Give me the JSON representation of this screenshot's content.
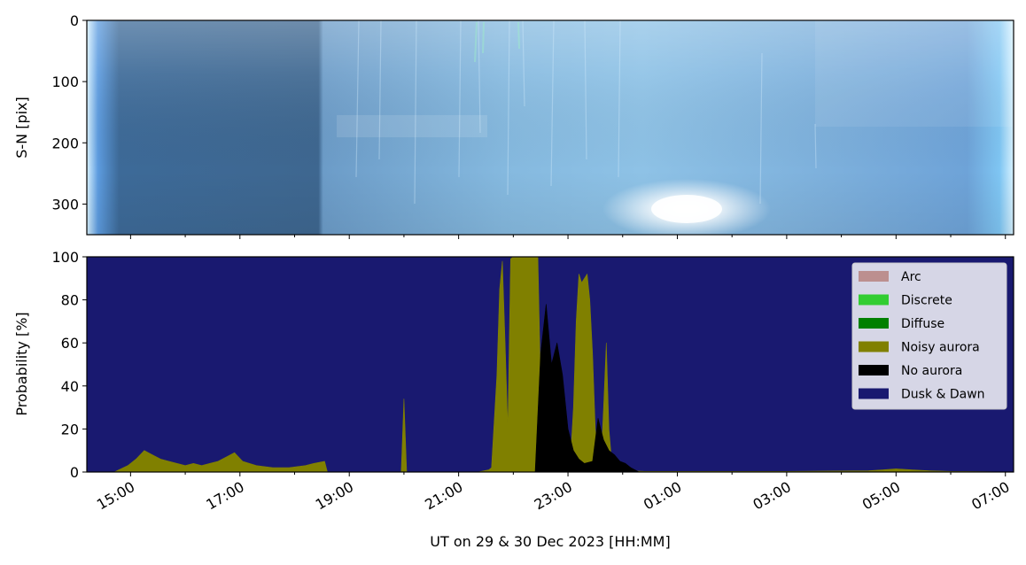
{
  "chart_data": [
    {
      "type": "heatmap",
      "ylabel": "S-N [pix]",
      "ylim": [
        350,
        0
      ],
      "y_ticks": [
        "0",
        "100",
        "200",
        "300"
      ],
      "y_tick_values": [
        0,
        100,
        200,
        300
      ],
      "colors": {
        "dark": "#3d6591",
        "mid": "#7fb4df",
        "light": "#aad2f0",
        "edge": "#cde9fb",
        "glow": "#ffffff"
      }
    },
    {
      "type": "area",
      "ylabel": "Probability [%]",
      "xlabel": "UT on 29 & 30 Dec 2023 [HH:MM]",
      "ylim": [
        0,
        100
      ],
      "y_ticks": [
        "0",
        "20",
        "40",
        "60",
        "80",
        "100"
      ],
      "y_tick_values": [
        0,
        20,
        40,
        60,
        80,
        100
      ],
      "x_ticks": [
        "15:00",
        "17:00",
        "19:00",
        "21:00",
        "23:00",
        "01:00",
        "03:00",
        "05:00",
        "07:00"
      ],
      "x_tick_hours": [
        15,
        17,
        19,
        21,
        23,
        25,
        27,
        29,
        31
      ],
      "xlim_hours": [
        14.2,
        31.15
      ],
      "legend_position": "upper-right",
      "background_color": "#191970",
      "series": [
        {
          "name": "Arc",
          "color": "#bc8f8f",
          "x": [],
          "values": []
        },
        {
          "name": "Discrete",
          "color": "#32cd32",
          "x": [],
          "values": []
        },
        {
          "name": "Diffuse",
          "color": "#008000",
          "x": [],
          "values": []
        },
        {
          "name": "Noisy aurora",
          "color": "#808000",
          "x": [
            14.2,
            14.7,
            14.95,
            15.1,
            15.25,
            15.4,
            15.55,
            15.7,
            15.85,
            16.0,
            16.15,
            16.3,
            16.45,
            16.6,
            16.75,
            16.9,
            17.05,
            17.3,
            17.6,
            17.9,
            18.2,
            18.35,
            18.55,
            18.6,
            19.2,
            19.95,
            20.0,
            20.05,
            20.1,
            21.35,
            21.55,
            21.6,
            21.7,
            21.75,
            21.8,
            21.85,
            21.9,
            21.95,
            22.0,
            22.05,
            22.1,
            22.15,
            22.25,
            22.35,
            22.45,
            22.5,
            22.55,
            22.6,
            22.65,
            22.7,
            22.75,
            22.8,
            22.85,
            22.9,
            22.95,
            23.0,
            23.05,
            23.1,
            23.15,
            23.2,
            23.25,
            23.3,
            23.35,
            23.4,
            23.45,
            23.5,
            23.55,
            23.6,
            23.65,
            23.7,
            23.75,
            23.8,
            23.9,
            24.0,
            24.1,
            24.2,
            24.4,
            25.0,
            26.0,
            27.0,
            28.0,
            28.5,
            28.75,
            29.0,
            29.3,
            29.6,
            30.0,
            30.5,
            31.15
          ],
          "values": [
            0,
            0,
            3,
            6,
            10,
            8,
            6,
            5,
            4,
            3,
            4,
            3,
            4,
            5,
            7,
            9,
            5,
            3,
            2,
            2,
            3,
            4,
            5,
            0,
            0,
            0,
            34,
            0,
            0,
            0,
            1,
            2,
            45,
            85,
            98,
            60,
            20,
            99,
            100,
            100,
            100,
            100,
            100,
            100,
            100,
            40,
            30,
            45,
            40,
            30,
            20,
            15,
            10,
            8,
            6,
            4,
            8,
            30,
            70,
            92,
            88,
            90,
            92,
            80,
            55,
            20,
            6,
            2,
            30,
            60,
            20,
            5,
            3,
            1,
            0.5,
            0.5,
            0.3,
            0.3,
            0.3,
            0.3,
            0.5,
            0.6,
            1.0,
            1.5,
            1.0,
            0.6,
            0.3,
            0.2,
            0
          ]
        },
        {
          "name": "No aurora",
          "color": "#000000",
          "x": [
            21.3,
            22.4,
            22.5,
            22.6,
            22.7,
            22.8,
            22.9,
            23.0,
            23.1,
            23.2,
            23.3,
            23.45,
            23.55,
            23.65,
            23.75,
            23.85,
            23.95,
            24.05,
            24.15,
            24.3
          ],
          "values": [
            0,
            0,
            55,
            78,
            50,
            60,
            45,
            20,
            10,
            6,
            4,
            5,
            25,
            15,
            10,
            8,
            5,
            4,
            2,
            0
          ]
        },
        {
          "name": "Dusk & Dawn",
          "color": "#191970",
          "x": [],
          "values": []
        }
      ]
    }
  ]
}
